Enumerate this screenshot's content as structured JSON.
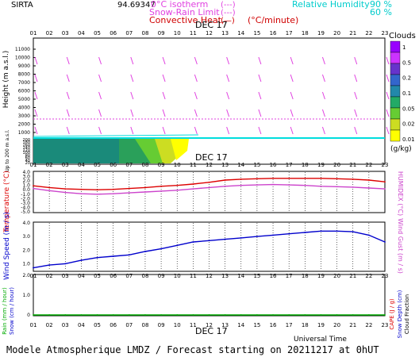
{
  "header": {
    "station": "SIRTA",
    "coords": "94.69347",
    "legend": [
      {
        "label": "0°C isotherm",
        "symbol": "(---)",
        "color": "#e040e0"
      },
      {
        "label": "Snow-Rain Limit",
        "symbol": "(---)",
        "color": "#e040e0"
      },
      {
        "label": "Convective Heat.",
        "symbol": "(—)",
        "unit": "(°C/minute)",
        "color": "#d00000"
      }
    ],
    "rh_label": "Relative Humidity",
    "rh_values": [
      "90 %",
      "60 %"
    ]
  },
  "date_label": "DEC 17",
  "hours": [
    "01",
    "02",
    "03",
    "04",
    "05",
    "06",
    "07",
    "08",
    "09",
    "10",
    "11",
    "12",
    "13",
    "14",
    "15",
    "16",
    "17",
    "18",
    "19",
    "20",
    "21",
    "22",
    "23"
  ],
  "panel1": {
    "ylabel": "Height (m a.s.l.)",
    "ylabel_low": "Up to 200 m a.s.l.",
    "y_ticks": [
      "11000",
      "10000",
      "9000",
      "8000",
      "7000",
      "6000",
      "5000",
      "4000",
      "3000",
      "2000",
      "1000"
    ],
    "y_ticks_low": [
      "200",
      "180",
      "160",
      "140",
      "120",
      "100",
      "80",
      "60",
      "40",
      "20"
    ],
    "clouds_title": "Clouds",
    "clouds_unit": "(g/kg)",
    "clouds_scale": [
      "1",
      "0.5",
      "0.2",
      "0.1",
      "0.05",
      "0.02",
      "0.01"
    ],
    "clouds_colors": [
      "#9900ff",
      "#cc33ff",
      "#6633cc",
      "#3366cc",
      "#2288aa",
      "#22aa66",
      "#66cc33",
      "#ccdd22",
      "#ffff00"
    ]
  },
  "panel2": {
    "ylabel": "Temperature (°C)",
    "ylabel_right": "HUMIDEX (°C)",
    "y_ticks": [
      "4.0",
      "3.0",
      "2.0",
      "1.0",
      "0.0",
      "-1.0",
      "-2.0",
      "-3.0",
      "-4.0",
      "-5.0"
    ]
  },
  "panel3": {
    "ylabel": "Wind Speed (m / s)",
    "ylabel_right": "Wind Gust (m / s)",
    "y_ticks": [
      "4.0",
      "3.0",
      "2.0",
      "1.0"
    ]
  },
  "panel4": {
    "ylabel_rain": "Rain (mm / hour)",
    "ylabel_snow": "Snow (cm / hour)",
    "ylabel_cape": "CAPE (J / g)",
    "ylabel_snowdepth": "Snow Depth (cm)",
    "ylabel_cloudfrac": "Cloud Fraction",
    "y_ticks": [
      "2.0",
      "1.0",
      "0"
    ]
  },
  "footer": {
    "axis_label": "Universal Time",
    "title": "Modele Atmospherique LMDZ / Forecast starting on 20211217 at 0hUT"
  },
  "chart_data": [
    {
      "type": "line",
      "title": "",
      "xlabel": "",
      "ylabel": "Temperature (°C)",
      "x": [
        1,
        2,
        3,
        4,
        5,
        6,
        7,
        8,
        9,
        10,
        11,
        12,
        13,
        14,
        15,
        16,
        17,
        18,
        19,
        20,
        21,
        22,
        23
      ],
      "ylim": [
        -5,
        4
      ],
      "series": [
        {
          "name": "Temperature",
          "color": "#dd0000",
          "values": [
            0.9,
            0.5,
            0.2,
            0.1,
            0.0,
            0.1,
            0.3,
            0.5,
            0.8,
            1.0,
            1.3,
            1.7,
            2.2,
            2.4,
            2.5,
            2.6,
            2.6,
            2.6,
            2.6,
            2.5,
            2.4,
            2.2,
            1.8
          ]
        },
        {
          "name": "HUMIDEX",
          "color": "#cc44cc",
          "values": [
            0.3,
            -0.2,
            -0.6,
            -0.9,
            -1.0,
            -0.9,
            -0.7,
            -0.5,
            -0.3,
            -0.1,
            0.2,
            0.5,
            0.8,
            1.0,
            1.1,
            1.2,
            1.1,
            1.0,
            0.8,
            0.7,
            0.6,
            0.4,
            0.2
          ]
        }
      ]
    },
    {
      "type": "line",
      "title": "",
      "xlabel": "",
      "ylabel": "Wind Speed (m / s)",
      "x": [
        1,
        2,
        3,
        4,
        5,
        6,
        7,
        8,
        9,
        10,
        11,
        12,
        13,
        14,
        15,
        16,
        17,
        18,
        19,
        20,
        21,
        22,
        23
      ],
      "ylim": [
        0.5,
        4
      ],
      "series": [
        {
          "name": "Wind Speed",
          "color": "#0000cc",
          "values": [
            0.7,
            0.9,
            1.0,
            1.25,
            1.45,
            1.55,
            1.65,
            1.9,
            2.1,
            2.35,
            2.6,
            2.7,
            2.8,
            2.9,
            3.0,
            3.1,
            3.2,
            3.3,
            3.4,
            3.4,
            3.35,
            3.1,
            2.6
          ]
        }
      ]
    },
    {
      "type": "line",
      "title": "",
      "xlabel": "Universal Time",
      "ylabel": "Rain (mm / hour)",
      "x": [
        1,
        2,
        3,
        4,
        5,
        6,
        7,
        8,
        9,
        10,
        11,
        12,
        13,
        14,
        15,
        16,
        17,
        18,
        19,
        20,
        21,
        22,
        23
      ],
      "ylim": [
        0,
        2
      ],
      "series": [
        {
          "name": "Rain",
          "color": "#00aa00",
          "values": [
            0,
            0,
            0,
            0,
            0,
            0,
            0,
            0,
            0,
            0,
            0,
            0,
            0,
            0,
            0,
            0,
            0,
            0,
            0,
            0,
            0,
            0,
            0
          ]
        }
      ]
    }
  ]
}
